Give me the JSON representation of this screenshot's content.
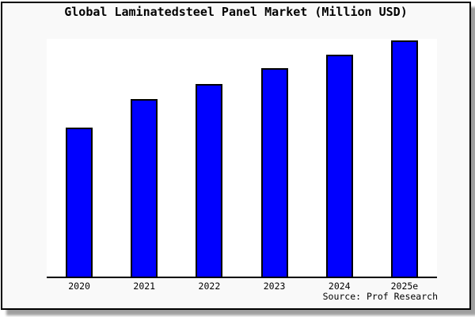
{
  "frame": {
    "background": "#f9f9f9",
    "border_color": "#000000",
    "shadow_color": "#9f9f9f"
  },
  "source_credit": "Source: Prof Research",
  "chart_data": {
    "type": "bar",
    "title": "Global Laminatedsteel Panel Market (Million USD)",
    "categories": [
      "2020",
      "2021",
      "2022",
      "2023",
      "2024",
      "2025e"
    ],
    "values": [
      62.6,
      74.8,
      81.1,
      87.7,
      93.4,
      99.5
    ],
    "xlabel": "",
    "ylabel": "",
    "ylim": [
      0,
      100
    ],
    "grid": false,
    "legend_position": "none",
    "bar_color": "#0000ff",
    "bar_border_color": "#000000",
    "axis_line_color": "#000000",
    "plot_background": "#ffffff"
  }
}
